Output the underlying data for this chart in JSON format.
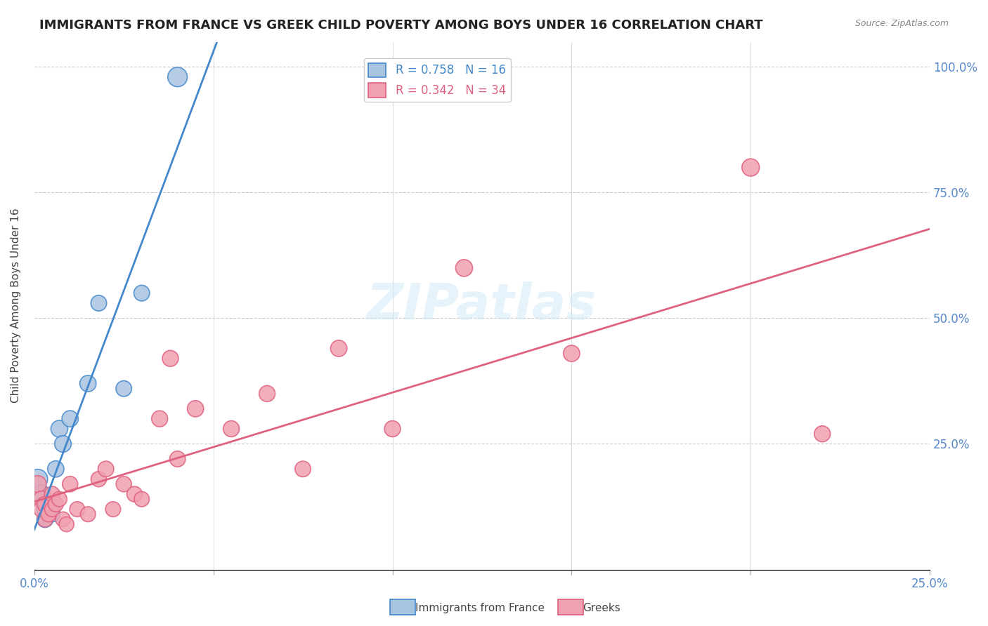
{
  "title": "IMMIGRANTS FROM FRANCE VS GREEK CHILD POVERTY AMONG BOYS UNDER 16 CORRELATION CHART",
  "source": "Source: ZipAtlas.com",
  "xlabel_bottom": "",
  "ylabel": "Child Poverty Among Boys Under 16",
  "x_ticks": [
    0.0,
    0.05,
    0.1,
    0.15,
    0.2,
    0.25
  ],
  "x_tick_labels": [
    "0.0%",
    "",
    "",
    "",
    "",
    "25.0%"
  ],
  "y_ticks": [
    0.0,
    0.25,
    0.5,
    0.75,
    1.0
  ],
  "y_tick_labels": [
    "",
    "25.0%",
    "50.0%",
    "75.0%",
    "100.0%"
  ],
  "xlim": [
    0.0,
    0.25
  ],
  "ylim": [
    0.0,
    1.05
  ],
  "blue_label": "Immigrants from France",
  "pink_label": "Greeks",
  "blue_R": 0.758,
  "blue_N": 16,
  "pink_R": 0.342,
  "pink_N": 34,
  "blue_color": "#a8c4e0",
  "pink_color": "#f0a0b0",
  "blue_line_color": "#4488cc",
  "pink_line_color": "#e06080",
  "watermark": "ZIPatlas",
  "blue_scatter_x": [
    0.001,
    0.002,
    0.003,
    0.003,
    0.004,
    0.005,
    0.005,
    0.006,
    0.007,
    0.008,
    0.01,
    0.015,
    0.018,
    0.025,
    0.03,
    0.04
  ],
  "blue_scatter_y": [
    0.18,
    0.15,
    0.12,
    0.1,
    0.13,
    0.12,
    0.11,
    0.2,
    0.28,
    0.25,
    0.3,
    0.37,
    0.53,
    0.36,
    0.55,
    0.98
  ],
  "pink_scatter_x": [
    0.001,
    0.002,
    0.002,
    0.003,
    0.003,
    0.004,
    0.005,
    0.005,
    0.006,
    0.007,
    0.008,
    0.009,
    0.01,
    0.012,
    0.015,
    0.018,
    0.02,
    0.022,
    0.025,
    0.028,
    0.03,
    0.035,
    0.038,
    0.04,
    0.045,
    0.055,
    0.065,
    0.075,
    0.085,
    0.1,
    0.12,
    0.15,
    0.2,
    0.22
  ],
  "pink_scatter_y": [
    0.17,
    0.14,
    0.12,
    0.13,
    0.1,
    0.11,
    0.15,
    0.12,
    0.13,
    0.14,
    0.1,
    0.09,
    0.17,
    0.12,
    0.11,
    0.18,
    0.2,
    0.12,
    0.17,
    0.15,
    0.14,
    0.3,
    0.42,
    0.22,
    0.32,
    0.28,
    0.35,
    0.2,
    0.44,
    0.28,
    0.6,
    0.43,
    0.8,
    0.27
  ],
  "blue_scatter_sizes": [
    400,
    350,
    300,
    280,
    260,
    260,
    250,
    280,
    300,
    290,
    280,
    280,
    260,
    260,
    260,
    400
  ],
  "pink_scatter_sizes": [
    300,
    280,
    260,
    260,
    250,
    250,
    250,
    240,
    240,
    240,
    230,
    230,
    250,
    240,
    240,
    250,
    260,
    240,
    250,
    250,
    240,
    270,
    270,
    260,
    280,
    270,
    270,
    260,
    280,
    270,
    300,
    280,
    320,
    270
  ]
}
